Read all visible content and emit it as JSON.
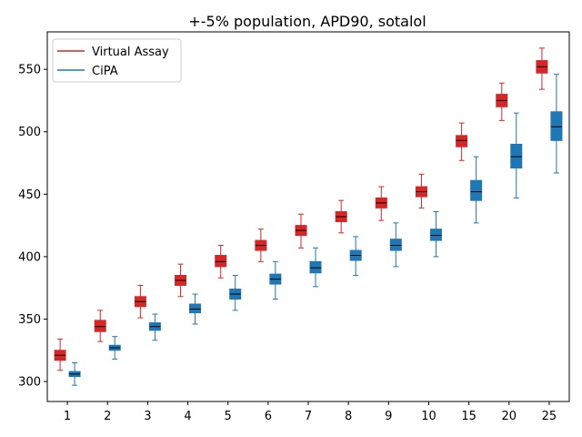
{
  "chart_data": {
    "type": "box",
    "title": "+-5% population, APD90, sotalol",
    "xlabel": "",
    "ylabel": "",
    "categories": [
      "1",
      "2",
      "3",
      "4",
      "5",
      "6",
      "7",
      "8",
      "9",
      "10",
      "15",
      "20",
      "25"
    ],
    "ylim": [
      284,
      580
    ],
    "yticks": [
      300,
      350,
      400,
      450,
      500,
      550
    ],
    "legend_position": "top-left",
    "grid": false,
    "series": [
      {
        "name": "Virtual Assay",
        "color": "#d62728",
        "boxes": [
          {
            "whislo": 309,
            "q1": 317,
            "med": 321,
            "q3": 325,
            "whishi": 334
          },
          {
            "whislo": 332,
            "q1": 340,
            "med": 344,
            "q3": 349,
            "whishi": 357
          },
          {
            "whislo": 351,
            "q1": 360,
            "med": 364,
            "q3": 368,
            "whishi": 377
          },
          {
            "whislo": 368,
            "q1": 377,
            "med": 381,
            "q3": 385,
            "whishi": 394
          },
          {
            "whislo": 383,
            "q1": 392,
            "med": 396,
            "q3": 401,
            "whishi": 409
          },
          {
            "whislo": 396,
            "q1": 405,
            "med": 409,
            "q3": 413,
            "whishi": 422
          },
          {
            "whislo": 407,
            "q1": 417,
            "med": 421,
            "q3": 425,
            "whishi": 434
          },
          {
            "whislo": 419,
            "q1": 428,
            "med": 432,
            "q3": 436,
            "whishi": 445
          },
          {
            "whislo": 429,
            "q1": 439,
            "med": 443,
            "q3": 447,
            "whishi": 456
          },
          {
            "whislo": 439,
            "q1": 448,
            "med": 452,
            "q3": 456,
            "whishi": 466
          },
          {
            "whislo": 477,
            "q1": 488,
            "med": 493,
            "q3": 497,
            "whishi": 507
          },
          {
            "whislo": 509,
            "q1": 520,
            "med": 525,
            "q3": 530,
            "whishi": 539
          },
          {
            "whislo": 534,
            "q1": 547,
            "med": 552,
            "q3": 557,
            "whishi": 567
          }
        ]
      },
      {
        "name": "CiPA",
        "color": "#1f77b4",
        "boxes": [
          {
            "whislo": 297,
            "q1": 304,
            "med": 306,
            "q3": 308,
            "whishi": 315
          },
          {
            "whislo": 318,
            "q1": 325,
            "med": 327,
            "q3": 329,
            "whishi": 336
          },
          {
            "whislo": 333,
            "q1": 341,
            "med": 344,
            "q3": 347,
            "whishi": 354
          },
          {
            "whislo": 346,
            "q1": 355,
            "med": 358,
            "q3": 362,
            "whishi": 370
          },
          {
            "whislo": 357,
            "q1": 366,
            "med": 370,
            "q3": 374,
            "whishi": 385
          },
          {
            "whislo": 366,
            "q1": 378,
            "med": 382,
            "q3": 386,
            "whishi": 396
          },
          {
            "whislo": 376,
            "q1": 387,
            "med": 391,
            "q3": 396,
            "whishi": 407
          },
          {
            "whislo": 385,
            "q1": 397,
            "med": 401,
            "q3": 405,
            "whishi": 416
          },
          {
            "whislo": 392,
            "q1": 405,
            "med": 409,
            "q3": 414,
            "whishi": 427
          },
          {
            "whislo": 400,
            "q1": 413,
            "med": 417,
            "q3": 422,
            "whishi": 436
          },
          {
            "whislo": 427,
            "q1": 445,
            "med": 452,
            "q3": 461,
            "whishi": 480
          },
          {
            "whislo": 447,
            "q1": 471,
            "med": 480,
            "q3": 490,
            "whishi": 515
          },
          {
            "whislo": 467,
            "q1": 493,
            "med": 504,
            "q3": 516,
            "whishi": 546
          }
        ]
      }
    ]
  }
}
